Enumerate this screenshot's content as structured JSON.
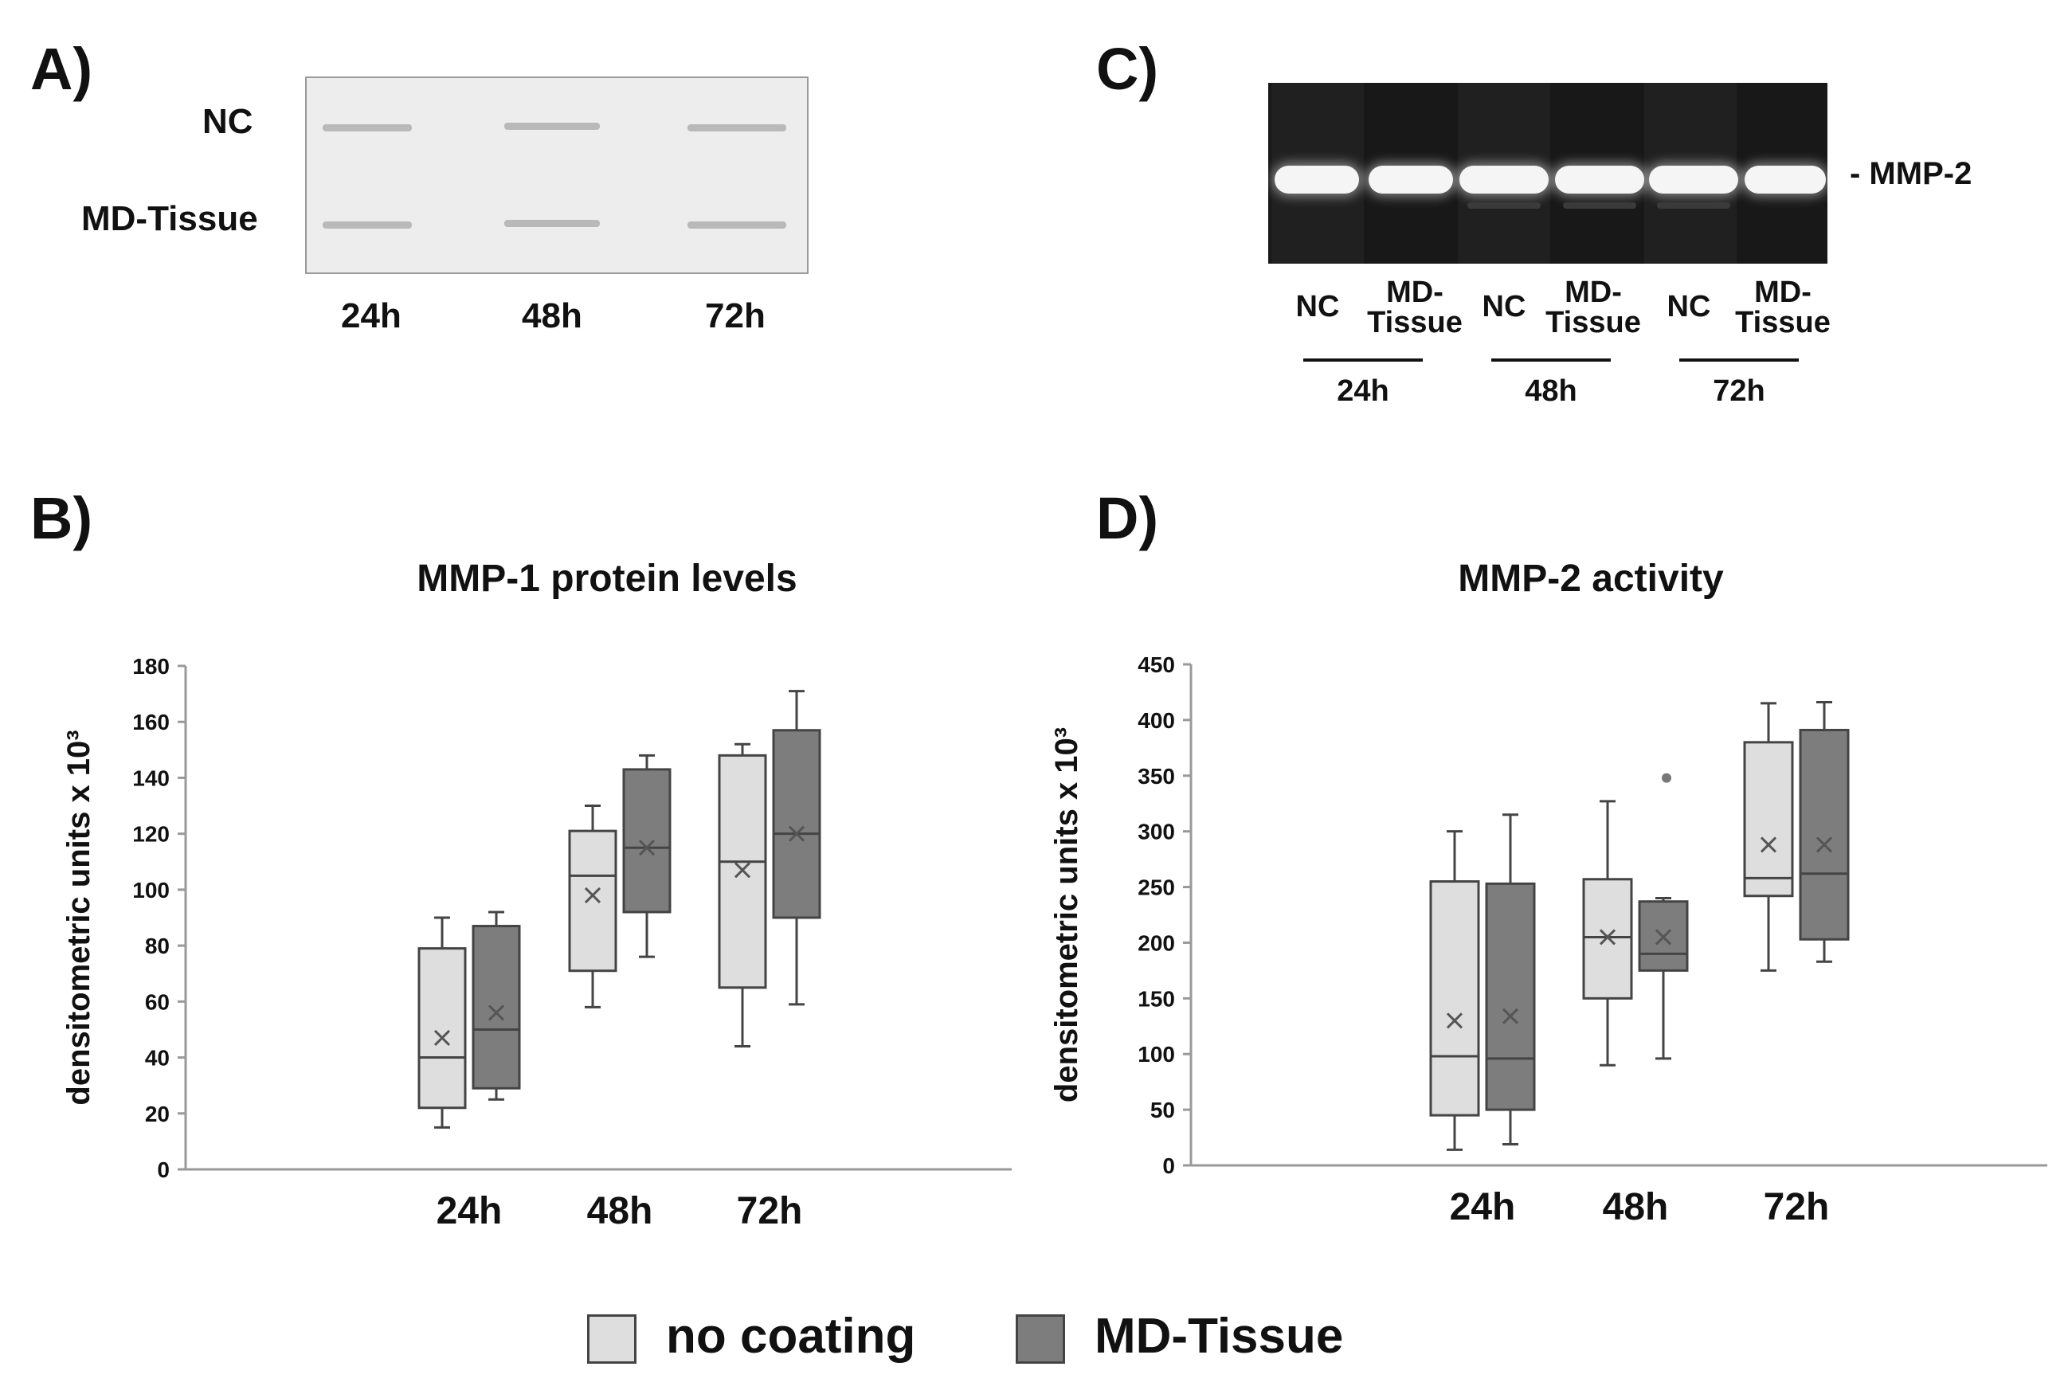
{
  "panels": {
    "a": {
      "label": "A)",
      "row_labels": [
        "NC",
        "MD-Tissue"
      ],
      "lane_labels": [
        "24h",
        "48h",
        "72h"
      ]
    },
    "b": {
      "label": "B)"
    },
    "c": {
      "label": "C)",
      "band_label": "- MMP-2",
      "lane_labels": [
        "NC",
        "MD-\nTissue",
        "NC",
        "MD-\nTissue",
        "NC",
        "MD-\nTissue"
      ],
      "group_labels": [
        "24h",
        "48h",
        "72h"
      ]
    },
    "d": {
      "label": "D)"
    }
  },
  "legend": {
    "items": [
      {
        "label": "no coating",
        "color": "#dedede"
      },
      {
        "label": "MD-Tissue",
        "color": "#7d7d7d"
      }
    ]
  },
  "colors": {
    "no_coating": "#dedede",
    "md_tissue": "#7d7d7d",
    "stroke": "#444444",
    "axis": "#999999"
  },
  "chart_data": [
    {
      "type": "box",
      "title": "MMP-1 protein levels",
      "ylabel": "densitometric units x 10³",
      "ylim": [
        0,
        180
      ],
      "yticks": [
        0,
        20,
        40,
        60,
        80,
        100,
        120,
        140,
        160,
        180
      ],
      "categories": [
        "24h",
        "48h",
        "72h"
      ],
      "series": [
        {
          "name": "no coating",
          "boxes": [
            {
              "min": 15,
              "q1": 22,
              "median": 40,
              "q3": 79,
              "max": 90,
              "mean": 47
            },
            {
              "min": 58,
              "q1": 71,
              "median": 105,
              "q3": 121,
              "max": 130,
              "mean": 98
            },
            {
              "min": 44,
              "q1": 65,
              "median": 110,
              "q3": 148,
              "max": 152,
              "mean": 107
            }
          ]
        },
        {
          "name": "MD-Tissue",
          "boxes": [
            {
              "min": 25,
              "q1": 29,
              "median": 50,
              "q3": 87,
              "max": 92,
              "mean": 56
            },
            {
              "min": 76,
              "q1": 92,
              "median": 115,
              "q3": 143,
              "max": 148,
              "mean": 115
            },
            {
              "min": 59,
              "q1": 90,
              "median": 120,
              "q3": 157,
              "max": 171,
              "mean": 120
            }
          ]
        }
      ]
    },
    {
      "type": "box",
      "title": "MMP-2 activity",
      "ylabel": "densitometric units x 10³",
      "ylim": [
        0,
        450
      ],
      "yticks": [
        0,
        50,
        100,
        150,
        200,
        250,
        300,
        350,
        400,
        450
      ],
      "categories": [
        "24h",
        "48h",
        "72h"
      ],
      "series": [
        {
          "name": "no coating",
          "boxes": [
            {
              "min": 14,
              "q1": 45,
              "median": 98,
              "q3": 255,
              "max": 300,
              "mean": 130
            },
            {
              "min": 90,
              "q1": 150,
              "median": 205,
              "q3": 257,
              "max": 327,
              "mean": 205
            },
            {
              "min": 175,
              "q1": 242,
              "median": 258,
              "q3": 380,
              "max": 415,
              "mean": 288
            }
          ]
        },
        {
          "name": "MD-Tissue",
          "boxes": [
            {
              "min": 19,
              "q1": 50,
              "median": 96,
              "q3": 253,
              "max": 315,
              "mean": 134
            },
            {
              "min": 96,
              "q1": 175,
              "median": 190,
              "q3": 237,
              "max": 240,
              "mean": 205,
              "outliers": [
                348
              ]
            },
            {
              "min": 183,
              "q1": 203,
              "median": 262,
              "q3": 391,
              "max": 416,
              "mean": 288
            }
          ]
        }
      ]
    }
  ]
}
